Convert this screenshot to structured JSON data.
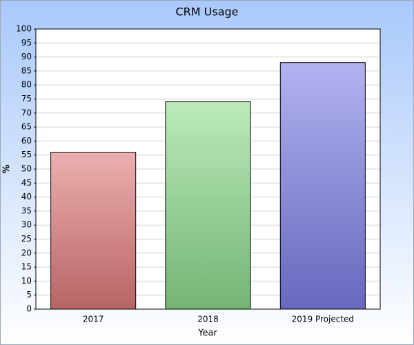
{
  "chart_data": {
    "type": "bar",
    "title": "CRM Usage",
    "x_label": "Year",
    "y_label": "%",
    "categories": [
      "2017",
      "2018",
      "2019 Projected"
    ],
    "values": [
      56,
      74,
      88
    ],
    "colors": [
      "#e07a7a",
      "#8edc8e",
      "#7e7ee8"
    ],
    "ylim": [
      0,
      100
    ],
    "yticks": [
      0,
      5,
      10,
      15,
      20,
      25,
      30,
      35,
      40,
      45,
      50,
      55,
      60,
      65,
      70,
      75,
      80,
      85,
      90,
      95,
      100
    ],
    "grid": true
  }
}
